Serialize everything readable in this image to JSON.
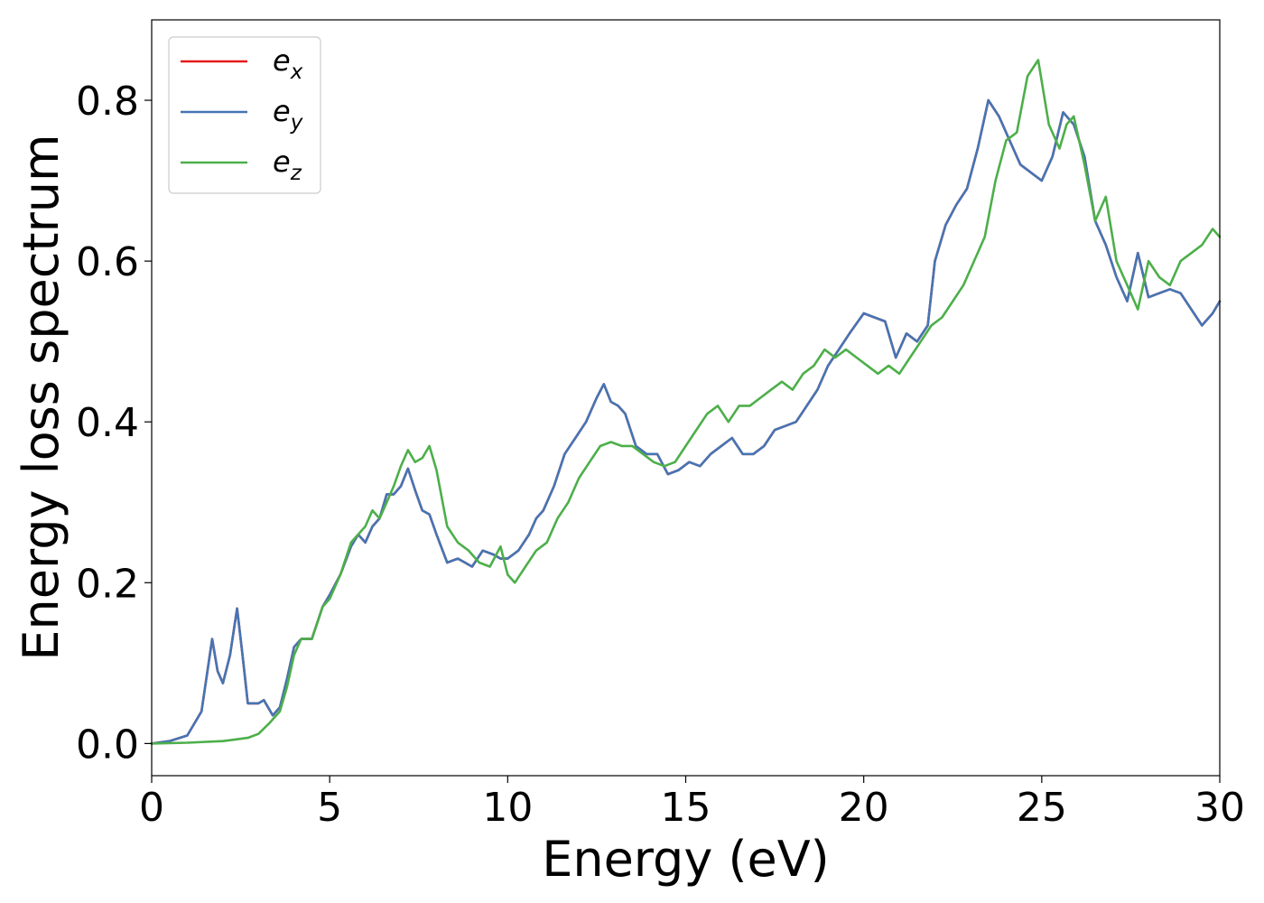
{
  "chart_data": {
    "type": "line",
    "title": "",
    "xlabel": "Energy (eV)",
    "ylabel": "Energy loss spectrum",
    "xlim": [
      0,
      30
    ],
    "ylim": [
      -0.04,
      0.9
    ],
    "xticks": [
      0,
      5,
      10,
      15,
      20,
      25,
      30
    ],
    "xtick_labels": [
      "0",
      "5",
      "10",
      "15",
      "20",
      "25",
      "30"
    ],
    "yticks": [
      0.0,
      0.2,
      0.4,
      0.6,
      0.8
    ],
    "ytick_labels": [
      "0.0",
      "0.2",
      "0.4",
      "0.6",
      "0.8"
    ],
    "grid": false,
    "legend_position": "top-left",
    "series": [
      {
        "name": "e_x",
        "label_base": "e",
        "label_sub": "x",
        "color": "#e41a1c",
        "x": [
          0,
          0.5,
          1.0,
          1.4,
          1.7,
          1.85,
          2.0,
          2.2,
          2.4,
          2.55,
          2.7,
          3.0,
          3.15,
          3.4,
          3.6,
          3.8,
          4.0,
          4.2,
          4.5,
          4.8,
          5.0,
          5.3,
          5.6,
          5.8,
          6.0,
          6.2,
          6.4,
          6.6,
          6.8,
          7.0,
          7.2,
          7.4,
          7.6,
          7.8,
          8.0,
          8.3,
          8.6,
          8.8,
          9.0,
          9.3,
          9.6,
          9.8,
          10.0,
          10.3,
          10.6,
          10.8,
          11.0,
          11.3,
          11.6,
          11.9,
          12.2,
          12.5,
          12.7,
          12.9,
          13.1,
          13.3,
          13.6,
          13.9,
          14.2,
          14.5,
          14.8,
          15.1,
          15.4,
          15.7,
          16.0,
          16.3,
          16.6,
          16.9,
          17.2,
          17.5,
          17.8,
          18.1,
          18.4,
          18.7,
          19.0,
          19.3,
          19.6,
          20.0,
          20.3,
          20.6,
          20.9,
          21.2,
          21.5,
          21.8,
          22.0,
          22.3,
          22.6,
          22.9,
          23.2,
          23.5,
          23.8,
          24.1,
          24.4,
          24.7,
          25.0,
          25.3,
          25.6,
          25.9,
          26.2,
          26.5,
          26.8,
          27.1,
          27.4,
          27.7,
          28.0,
          28.3,
          28.6,
          28.9,
          29.2,
          29.5,
          29.8,
          30.0
        ],
        "values": [
          0.0,
          0.003,
          0.01,
          0.04,
          0.13,
          0.09,
          0.075,
          0.11,
          0.168,
          0.11,
          0.05,
          0.05,
          0.054,
          0.035,
          0.045,
          0.08,
          0.12,
          0.13,
          0.13,
          0.17,
          0.185,
          0.21,
          0.245,
          0.26,
          0.25,
          0.27,
          0.28,
          0.31,
          0.31,
          0.32,
          0.342,
          0.315,
          0.29,
          0.285,
          0.26,
          0.225,
          0.23,
          0.225,
          0.22,
          0.24,
          0.235,
          0.23,
          0.23,
          0.24,
          0.26,
          0.28,
          0.29,
          0.32,
          0.36,
          0.38,
          0.4,
          0.43,
          0.447,
          0.425,
          0.42,
          0.41,
          0.37,
          0.36,
          0.36,
          0.335,
          0.34,
          0.35,
          0.345,
          0.36,
          0.37,
          0.38,
          0.36,
          0.36,
          0.37,
          0.39,
          0.395,
          0.4,
          0.42,
          0.44,
          0.47,
          0.49,
          0.51,
          0.535,
          0.53,
          0.525,
          0.48,
          0.51,
          0.5,
          0.52,
          0.6,
          0.645,
          0.67,
          0.69,
          0.74,
          0.8,
          0.78,
          0.75,
          0.72,
          0.71,
          0.7,
          0.73,
          0.785,
          0.77,
          0.73,
          0.65,
          0.62,
          0.58,
          0.55,
          0.61,
          0.555,
          0.56,
          0.565,
          0.56,
          0.54,
          0.52,
          0.535,
          0.55
        ]
      },
      {
        "name": "e_y",
        "label_base": "e",
        "label_sub": "y",
        "color": "#4575b4",
        "x": [
          0,
          0.5,
          1.0,
          1.4,
          1.7,
          1.85,
          2.0,
          2.2,
          2.4,
          2.55,
          2.7,
          3.0,
          3.15,
          3.4,
          3.6,
          3.8,
          4.0,
          4.2,
          4.5,
          4.8,
          5.0,
          5.3,
          5.6,
          5.8,
          6.0,
          6.2,
          6.4,
          6.6,
          6.8,
          7.0,
          7.2,
          7.4,
          7.6,
          7.8,
          8.0,
          8.3,
          8.6,
          8.8,
          9.0,
          9.3,
          9.6,
          9.8,
          10.0,
          10.3,
          10.6,
          10.8,
          11.0,
          11.3,
          11.6,
          11.9,
          12.2,
          12.5,
          12.7,
          12.9,
          13.1,
          13.3,
          13.6,
          13.9,
          14.2,
          14.5,
          14.8,
          15.1,
          15.4,
          15.7,
          16.0,
          16.3,
          16.6,
          16.9,
          17.2,
          17.5,
          17.8,
          18.1,
          18.4,
          18.7,
          19.0,
          19.3,
          19.6,
          20.0,
          20.3,
          20.6,
          20.9,
          21.2,
          21.5,
          21.8,
          22.0,
          22.3,
          22.6,
          22.9,
          23.2,
          23.5,
          23.8,
          24.1,
          24.4,
          24.7,
          25.0,
          25.3,
          25.6,
          25.9,
          26.2,
          26.5,
          26.8,
          27.1,
          27.4,
          27.7,
          28.0,
          28.3,
          28.6,
          28.9,
          29.2,
          29.5,
          29.8,
          30.0
        ],
        "values": [
          0.0,
          0.003,
          0.01,
          0.04,
          0.13,
          0.09,
          0.075,
          0.11,
          0.168,
          0.11,
          0.05,
          0.05,
          0.054,
          0.035,
          0.045,
          0.08,
          0.12,
          0.13,
          0.13,
          0.17,
          0.185,
          0.21,
          0.245,
          0.26,
          0.25,
          0.27,
          0.28,
          0.31,
          0.31,
          0.32,
          0.342,
          0.315,
          0.29,
          0.285,
          0.26,
          0.225,
          0.23,
          0.225,
          0.22,
          0.24,
          0.235,
          0.23,
          0.23,
          0.24,
          0.26,
          0.28,
          0.29,
          0.32,
          0.36,
          0.38,
          0.4,
          0.43,
          0.447,
          0.425,
          0.42,
          0.41,
          0.37,
          0.36,
          0.36,
          0.335,
          0.34,
          0.35,
          0.345,
          0.36,
          0.37,
          0.38,
          0.36,
          0.36,
          0.37,
          0.39,
          0.395,
          0.4,
          0.42,
          0.44,
          0.47,
          0.49,
          0.51,
          0.535,
          0.53,
          0.525,
          0.48,
          0.51,
          0.5,
          0.52,
          0.6,
          0.645,
          0.67,
          0.69,
          0.74,
          0.8,
          0.78,
          0.75,
          0.72,
          0.71,
          0.7,
          0.73,
          0.785,
          0.77,
          0.73,
          0.65,
          0.62,
          0.58,
          0.55,
          0.61,
          0.555,
          0.56,
          0.565,
          0.56,
          0.54,
          0.52,
          0.535,
          0.55
        ]
      },
      {
        "name": "e_z",
        "label_base": "e",
        "label_sub": "z",
        "color": "#4daf4a",
        "x": [
          0,
          1.0,
          2.0,
          2.7,
          3.0,
          3.3,
          3.6,
          3.8,
          4.0,
          4.2,
          4.5,
          4.8,
          5.0,
          5.3,
          5.6,
          5.8,
          6.0,
          6.2,
          6.4,
          6.6,
          6.8,
          7.0,
          7.2,
          7.4,
          7.6,
          7.8,
          8.0,
          8.3,
          8.6,
          8.9,
          9.2,
          9.5,
          9.8,
          10.0,
          10.2,
          10.5,
          10.8,
          11.1,
          11.4,
          11.7,
          12.0,
          12.3,
          12.6,
          12.9,
          13.2,
          13.5,
          13.8,
          14.1,
          14.4,
          14.7,
          15.0,
          15.3,
          15.6,
          15.9,
          16.2,
          16.5,
          16.8,
          17.1,
          17.4,
          17.7,
          18.0,
          18.3,
          18.6,
          18.9,
          19.2,
          19.5,
          19.8,
          20.1,
          20.4,
          20.7,
          21.0,
          21.3,
          21.6,
          21.9,
          22.2,
          22.5,
          22.8,
          23.1,
          23.4,
          23.7,
          24.0,
          24.3,
          24.6,
          24.9,
          25.2,
          25.5,
          25.7,
          25.9,
          26.2,
          26.5,
          26.8,
          27.1,
          27.4,
          27.7,
          28.0,
          28.3,
          28.6,
          28.9,
          29.2,
          29.5,
          29.8,
          30.0
        ],
        "values": [
          0.0,
          0.001,
          0.003,
          0.007,
          0.012,
          0.025,
          0.04,
          0.07,
          0.11,
          0.13,
          0.13,
          0.17,
          0.18,
          0.21,
          0.25,
          0.26,
          0.27,
          0.29,
          0.28,
          0.3,
          0.32,
          0.345,
          0.365,
          0.35,
          0.355,
          0.37,
          0.34,
          0.27,
          0.25,
          0.24,
          0.225,
          0.22,
          0.245,
          0.21,
          0.2,
          0.22,
          0.24,
          0.25,
          0.28,
          0.3,
          0.33,
          0.35,
          0.37,
          0.375,
          0.37,
          0.37,
          0.36,
          0.35,
          0.345,
          0.35,
          0.37,
          0.39,
          0.41,
          0.42,
          0.4,
          0.42,
          0.42,
          0.43,
          0.44,
          0.45,
          0.44,
          0.46,
          0.47,
          0.49,
          0.48,
          0.49,
          0.48,
          0.47,
          0.46,
          0.47,
          0.46,
          0.48,
          0.5,
          0.52,
          0.53,
          0.55,
          0.57,
          0.6,
          0.63,
          0.7,
          0.75,
          0.76,
          0.83,
          0.85,
          0.77,
          0.74,
          0.77,
          0.78,
          0.72,
          0.65,
          0.68,
          0.6,
          0.57,
          0.54,
          0.6,
          0.58,
          0.57,
          0.6,
          0.61,
          0.62,
          0.64,
          0.63
        ]
      }
    ]
  }
}
